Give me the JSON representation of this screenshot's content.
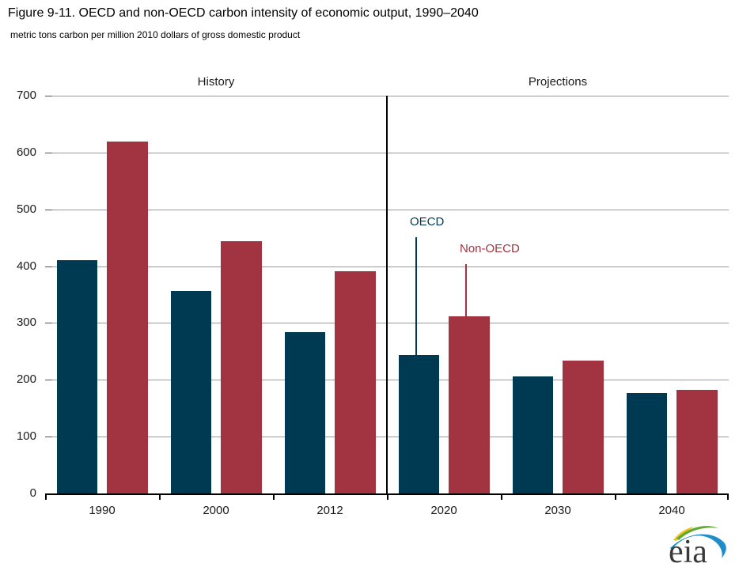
{
  "header": {
    "title": "Figure 9-11. OECD and non-OECD carbon intensity of economic output, 1990–2040",
    "subtitle": "metric tons carbon per million 2010 dollars of gross domestic product"
  },
  "sections": {
    "history_label": "History",
    "projections_label": "Projections"
  },
  "annotations": {
    "oecd_label": "OECD",
    "non_oecd_label": "Non-OECD"
  },
  "logo": {
    "text": "eia"
  },
  "colors": {
    "oecd": "#003A52",
    "non_oecd": "#A23340",
    "gridline": "#999999",
    "axis": "#000000",
    "label_text": "#1A1A1A"
  },
  "chart_data": {
    "type": "bar",
    "title": "Figure 9-11. OECD and non-OECD carbon intensity of economic output, 1990–2040",
    "ylabel": "metric tons carbon per million 2010 dollars of gross domestic product",
    "xlabel": "",
    "categories": [
      "1990",
      "2000",
      "2012",
      "2020",
      "2030",
      "2040"
    ],
    "series": [
      {
        "name": "OECD",
        "color": "#003A52",
        "values": [
          411,
          356,
          284,
          244,
          206,
          177
        ]
      },
      {
        "name": "Non-OECD",
        "color": "#A23340",
        "values": [
          620,
          444,
          391,
          312,
          234,
          183
        ]
      }
    ],
    "ylim": [
      0,
      700
    ],
    "ytick_step": 100,
    "grid": true,
    "legend_position": "inline-annotations-over-2020-bars",
    "history_section": {
      "label": "History",
      "categories": [
        "1990",
        "2000",
        "2012"
      ]
    },
    "projections_section": {
      "label": "Projections",
      "categories": [
        "2020",
        "2030",
        "2040"
      ]
    },
    "divider_after_index": 2
  }
}
